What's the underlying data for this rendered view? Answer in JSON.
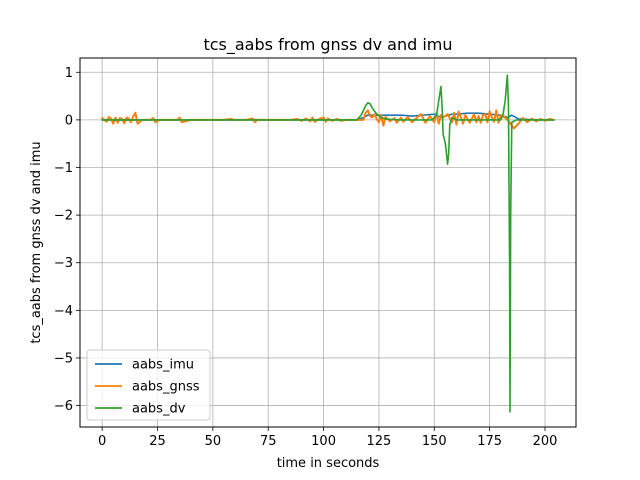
{
  "chart_data": {
    "type": "line",
    "title": "tcs_aabs from gnss dv and imu",
    "xlabel": "time in seconds",
    "ylabel": "tcs_aabs from gnss dv and imu",
    "xlim": [
      -10,
      214
    ],
    "ylim": [
      -6.45,
      1.3
    ],
    "xticks": [
      0,
      25,
      50,
      75,
      100,
      125,
      150,
      175,
      200
    ],
    "yticks": [
      1,
      0,
      -1,
      -2,
      -3,
      -4,
      -5,
      -6
    ],
    "xtick_labels": [
      "0",
      "25",
      "50",
      "75",
      "100",
      "125",
      "150",
      "175",
      "200"
    ],
    "ytick_labels": [
      "1",
      "0",
      "−1",
      "−2",
      "−3",
      "−4",
      "−5",
      "−6"
    ],
    "grid": true,
    "legend_position": "lower-left",
    "series": [
      {
        "name": "aabs_imu",
        "color": "#1f77b4",
        "x": [
          0,
          20,
          40,
          60,
          80,
          100,
          115,
          118,
          120,
          125,
          130,
          135,
          140,
          145,
          150,
          153,
          155,
          158,
          160,
          165,
          170,
          175,
          180,
          183,
          185,
          188,
          192,
          196,
          200,
          204
        ],
        "y": [
          0,
          0,
          0,
          0,
          0,
          0,
          0,
          0.05,
          0.1,
          0.1,
          0.1,
          0.1,
          0.08,
          0.1,
          0.12,
          0.05,
          0.08,
          0.12,
          0.12,
          0.14,
          0.14,
          0.12,
          0.1,
          0.05,
          0.1,
          0.02,
          0.01,
          0,
          0,
          0
        ]
      },
      {
        "name": "aabs_gnss",
        "color": "#ff7f0e",
        "x": [
          0,
          2,
          3,
          4,
          5,
          6,
          7,
          8,
          9,
          10,
          11,
          12,
          13,
          14,
          15,
          16,
          18,
          22,
          23,
          24,
          26,
          30,
          34,
          35,
          36,
          40,
          45,
          50,
          55,
          58,
          60,
          65,
          68,
          69,
          70,
          75,
          80,
          85,
          88,
          90,
          92,
          94,
          95,
          96,
          98,
          100,
          101,
          102,
          104,
          106,
          108,
          110,
          115,
          118,
          119,
          120,
          121,
          122,
          123,
          124,
          125,
          126,
          127,
          128,
          130,
          132,
          133,
          135,
          136,
          138,
          140,
          142,
          144,
          146,
          148,
          150,
          151,
          152,
          153,
          154,
          156,
          158,
          159,
          160,
          161,
          162,
          163,
          164,
          166,
          168,
          169,
          170,
          171,
          172,
          173,
          174,
          175,
          176,
          177,
          178,
          179,
          180,
          182,
          184,
          186,
          188,
          190,
          192,
          194,
          196,
          198,
          200,
          202,
          204
        ],
        "y": [
          0.04,
          -0.04,
          0.06,
          0.03,
          -0.08,
          0.05,
          -0.06,
          0.04,
          0.02,
          -0.07,
          0.05,
          0.03,
          -0.05,
          0.07,
          0.15,
          -0.08,
          0,
          0,
          0.04,
          -0.05,
          0,
          0,
          0,
          0.05,
          -0.05,
          0,
          0,
          0,
          0,
          0.02,
          0,
          0,
          0.03,
          -0.05,
          0,
          0,
          0,
          0,
          0.02,
          -0.02,
          0.03,
          -0.03,
          0.05,
          -0.04,
          0.02,
          0.05,
          -0.04,
          0.03,
          -0.02,
          0.02,
          -0.02,
          0,
          0,
          0,
          0.15,
          0.2,
          0.08,
          0.05,
          0.12,
          0.02,
          -0.05,
          0.1,
          -0.12,
          0.06,
          -0.03,
          0.04,
          -0.06,
          0.05,
          -0.04,
          0.06,
          -0.05,
          0.04,
          0.12,
          -0.06,
          0.08,
          -0.05,
          0.15,
          -0.08,
          0.1,
          0.05,
          0.12,
          -0.05,
          0.15,
          -0.1,
          0.18,
          0.05,
          -0.08,
          0.1,
          -0.06,
          0.12,
          -0.05,
          0.08,
          -0.06,
          0.1,
          0.12,
          -0.05,
          0.18,
          0.05,
          -0.04,
          0.2,
          -0.06,
          0.1,
          0.05,
          -0.05,
          -0.18,
          -0.08,
          0.04,
          -0.05,
          0.03,
          -0.03,
          0.02,
          -0.02,
          0.02,
          0
        ],
        "linewidth": 2
      },
      {
        "name": "aabs_dv",
        "color": "#2ca02c",
        "x": [
          0,
          20,
          40,
          60,
          80,
          100,
          110,
          115,
          117,
          119,
          120,
          121,
          122,
          124,
          126,
          128,
          130,
          135,
          140,
          145,
          149,
          151,
          152,
          153,
          153.5,
          154,
          155,
          156,
          156.5,
          157,
          158,
          160,
          165,
          170,
          175,
          180,
          181,
          182,
          183,
          183.5,
          184,
          184.2,
          184.5,
          185,
          187,
          190,
          195,
          200,
          204
        ],
        "y": [
          0,
          0,
          0,
          0,
          0,
          0,
          0,
          0,
          0.1,
          0.3,
          0.36,
          0.34,
          0.25,
          0.12,
          0.05,
          0.02,
          0.01,
          0,
          0,
          0,
          0,
          0.1,
          0.4,
          0.7,
          0.3,
          -0.3,
          -0.5,
          -0.93,
          -0.7,
          -0.1,
          0.05,
          0,
          0,
          0,
          0,
          0,
          0.1,
          0.4,
          0.94,
          0.3,
          -3,
          -6.13,
          -2,
          -0.05,
          0,
          0,
          0,
          0,
          0
        ]
      }
    ]
  }
}
